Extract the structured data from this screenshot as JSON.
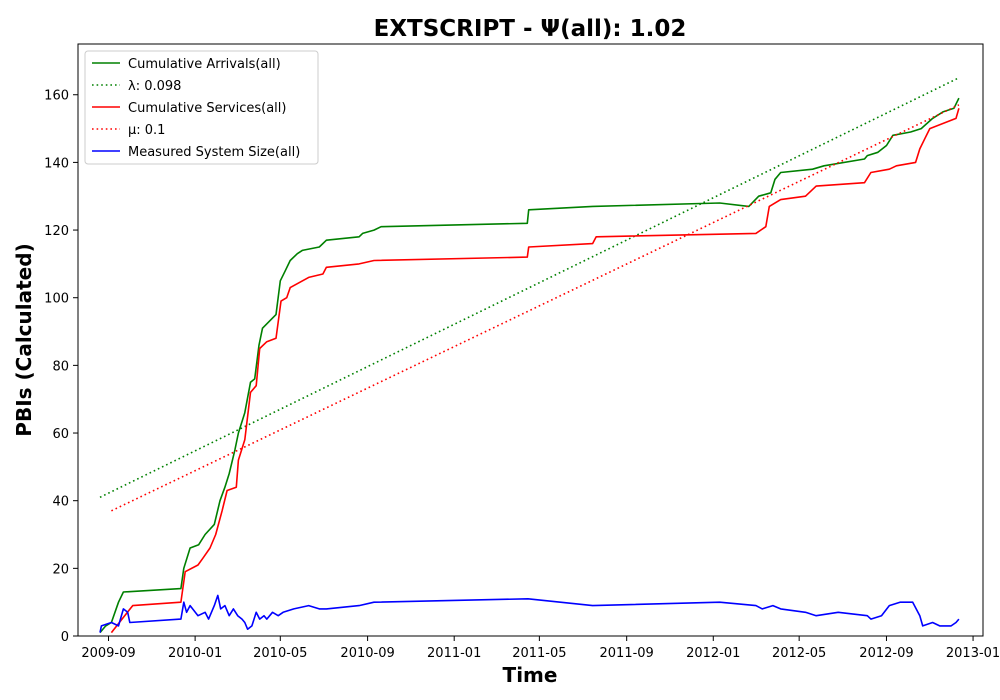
{
  "chart_data": {
    "type": "line",
    "title": "EXTSCRIPT -  Ψ(all): 1.02",
    "xlabel": "Time",
    "ylabel": "PBIs (Calculated)",
    "x_type": "date",
    "xlim": [
      "2009-07-20",
      "2013-01-15"
    ],
    "ylim": [
      0,
      175
    ],
    "x_ticks": [
      "2009-09",
      "2010-01",
      "2010-05",
      "2010-09",
      "2011-01",
      "2011-05",
      "2011-09",
      "2012-01",
      "2012-05",
      "2012-09",
      "2013-01"
    ],
    "y_ticks": [
      0,
      20,
      40,
      60,
      80,
      100,
      120,
      140,
      160
    ],
    "grid": false,
    "legend_position": "top-left",
    "series": [
      {
        "name": "Cumulative Arrivals(all)",
        "color": "#008000",
        "style": "solid",
        "points": [
          [
            "2009-08-20",
            1
          ],
          [
            "2009-08-28",
            3
          ],
          [
            "2009-09-05",
            4
          ],
          [
            "2009-09-15",
            10
          ],
          [
            "2009-09-22",
            13
          ],
          [
            "2009-12-12",
            14
          ],
          [
            "2009-12-16",
            20
          ],
          [
            "2009-12-25",
            26
          ],
          [
            "2010-01-06",
            27
          ],
          [
            "2010-01-15",
            30
          ],
          [
            "2010-01-28",
            33
          ],
          [
            "2010-02-05",
            40
          ],
          [
            "2010-02-12",
            44
          ],
          [
            "2010-02-18",
            48
          ],
          [
            "2010-02-26",
            55
          ],
          [
            "2010-03-03",
            60
          ],
          [
            "2010-03-12",
            66
          ],
          [
            "2010-03-20",
            75
          ],
          [
            "2010-03-26",
            76
          ],
          [
            "2010-04-01",
            86
          ],
          [
            "2010-04-06",
            91
          ],
          [
            "2010-04-25",
            95
          ],
          [
            "2010-05-01",
            105
          ],
          [
            "2010-05-08",
            108
          ],
          [
            "2010-05-15",
            111
          ],
          [
            "2010-05-25",
            113
          ],
          [
            "2010-06-01",
            114
          ],
          [
            "2010-06-25",
            115
          ],
          [
            "2010-07-05",
            117
          ],
          [
            "2010-08-20",
            118
          ],
          [
            "2010-08-25",
            119
          ],
          [
            "2010-09-10",
            120
          ],
          [
            "2010-09-20",
            121
          ],
          [
            "2011-04-14",
            122
          ],
          [
            "2011-04-16",
            126
          ],
          [
            "2011-07-15",
            127
          ],
          [
            "2012-01-10",
            128
          ],
          [
            "2012-02-20",
            127
          ],
          [
            "2012-03-05",
            130
          ],
          [
            "2012-03-22",
            131
          ],
          [
            "2012-03-28",
            135
          ],
          [
            "2012-04-05",
            137
          ],
          [
            "2012-05-20",
            138
          ],
          [
            "2012-06-05",
            139
          ],
          [
            "2012-08-01",
            141
          ],
          [
            "2012-08-05",
            142
          ],
          [
            "2012-08-20",
            143
          ],
          [
            "2012-09-01",
            145
          ],
          [
            "2012-09-10",
            148
          ],
          [
            "2012-10-05",
            149
          ],
          [
            "2012-10-20",
            150
          ],
          [
            "2012-11-05",
            153
          ],
          [
            "2012-11-20",
            155
          ],
          [
            "2012-12-05",
            156
          ],
          [
            "2012-12-12",
            159
          ]
        ]
      },
      {
        "name": "λ: 0.098",
        "color": "#008000",
        "style": "dotted",
        "points": [
          [
            "2009-08-20",
            41
          ],
          [
            "2012-12-12",
            165
          ]
        ]
      },
      {
        "name": "Cumulative Services(all)",
        "color": "#ff0000",
        "style": "solid",
        "points": [
          [
            "2009-09-05",
            1
          ],
          [
            "2009-09-20",
            5
          ],
          [
            "2009-10-05",
            9
          ],
          [
            "2009-12-12",
            10
          ],
          [
            "2009-12-18",
            19
          ],
          [
            "2010-01-05",
            21
          ],
          [
            "2010-01-12",
            23
          ],
          [
            "2010-01-22",
            26
          ],
          [
            "2010-01-30",
            30
          ],
          [
            "2010-02-08",
            37
          ],
          [
            "2010-02-15",
            43
          ],
          [
            "2010-02-28",
            44
          ],
          [
            "2010-03-03",
            52
          ],
          [
            "2010-03-12",
            58
          ],
          [
            "2010-03-20",
            72
          ],
          [
            "2010-03-28",
            74
          ],
          [
            "2010-04-02",
            85
          ],
          [
            "2010-04-12",
            87
          ],
          [
            "2010-04-25",
            88
          ],
          [
            "2010-05-02",
            99
          ],
          [
            "2010-05-10",
            100
          ],
          [
            "2010-05-15",
            103
          ],
          [
            "2010-06-10",
            106
          ],
          [
            "2010-06-30",
            107
          ],
          [
            "2010-07-05",
            109
          ],
          [
            "2010-08-20",
            110
          ],
          [
            "2010-09-10",
            111
          ],
          [
            "2011-04-14",
            112
          ],
          [
            "2011-04-16",
            115
          ],
          [
            "2011-07-15",
            116
          ],
          [
            "2011-07-20",
            118
          ],
          [
            "2012-03-01",
            119
          ],
          [
            "2012-03-15",
            121
          ],
          [
            "2012-03-20",
            127
          ],
          [
            "2012-04-05",
            129
          ],
          [
            "2012-05-10",
            130
          ],
          [
            "2012-05-25",
            133
          ],
          [
            "2012-08-01",
            134
          ],
          [
            "2012-08-10",
            137
          ],
          [
            "2012-09-05",
            138
          ],
          [
            "2012-09-15",
            139
          ],
          [
            "2012-10-12",
            140
          ],
          [
            "2012-10-18",
            144
          ],
          [
            "2012-10-25",
            147
          ],
          [
            "2012-11-01",
            150
          ],
          [
            "2012-12-08",
            153
          ],
          [
            "2012-12-12",
            156
          ]
        ]
      },
      {
        "name": "μ: 0.1",
        "color": "#ff0000",
        "style": "dotted",
        "points": [
          [
            "2009-09-05",
            37
          ],
          [
            "2012-12-12",
            157
          ]
        ]
      },
      {
        "name": "Measured System Size(all)",
        "color": "#0000ff",
        "style": "solid",
        "points": [
          [
            "2009-08-20",
            1
          ],
          [
            "2009-08-22",
            3
          ],
          [
            "2009-09-05",
            4
          ],
          [
            "2009-09-15",
            3
          ],
          [
            "2009-09-22",
            8
          ],
          [
            "2009-09-28",
            7
          ],
          [
            "2009-10-01",
            4
          ],
          [
            "2009-12-12",
            5
          ],
          [
            "2009-12-16",
            10
          ],
          [
            "2009-12-20",
            7
          ],
          [
            "2009-12-25",
            9
          ],
          [
            "2010-01-05",
            6
          ],
          [
            "2010-01-15",
            7
          ],
          [
            "2010-01-20",
            5
          ],
          [
            "2010-01-28",
            9
          ],
          [
            "2010-02-02",
            12
          ],
          [
            "2010-02-06",
            8
          ],
          [
            "2010-02-12",
            9
          ],
          [
            "2010-02-18",
            6
          ],
          [
            "2010-02-24",
            8
          ],
          [
            "2010-03-02",
            6
          ],
          [
            "2010-03-08",
            5
          ],
          [
            "2010-03-12",
            4
          ],
          [
            "2010-03-16",
            2
          ],
          [
            "2010-03-22",
            3
          ],
          [
            "2010-03-28",
            7
          ],
          [
            "2010-04-02",
            5
          ],
          [
            "2010-04-08",
            6
          ],
          [
            "2010-04-12",
            5
          ],
          [
            "2010-04-20",
            7
          ],
          [
            "2010-04-28",
            6
          ],
          [
            "2010-05-05",
            7
          ],
          [
            "2010-05-20",
            8
          ],
          [
            "2010-06-10",
            9
          ],
          [
            "2010-06-25",
            8
          ],
          [
            "2010-07-05",
            8
          ],
          [
            "2010-08-20",
            9
          ],
          [
            "2010-09-10",
            10
          ],
          [
            "2011-04-15",
            11
          ],
          [
            "2011-07-15",
            9
          ],
          [
            "2012-01-10",
            10
          ],
          [
            "2012-03-01",
            9
          ],
          [
            "2012-03-10",
            8
          ],
          [
            "2012-03-25",
            9
          ],
          [
            "2012-04-05",
            8
          ],
          [
            "2012-05-10",
            7
          ],
          [
            "2012-05-25",
            6
          ],
          [
            "2012-06-25",
            7
          ],
          [
            "2012-08-05",
            6
          ],
          [
            "2012-08-10",
            5
          ],
          [
            "2012-08-25",
            6
          ],
          [
            "2012-09-05",
            9
          ],
          [
            "2012-09-20",
            10
          ],
          [
            "2012-10-08",
            10
          ],
          [
            "2012-10-18",
            6
          ],
          [
            "2012-10-22",
            3
          ],
          [
            "2012-11-05",
            4
          ],
          [
            "2012-11-15",
            3
          ],
          [
            "2012-12-01",
            3
          ],
          [
            "2012-12-08",
            4
          ],
          [
            "2012-12-12",
            5
          ]
        ]
      }
    ]
  }
}
